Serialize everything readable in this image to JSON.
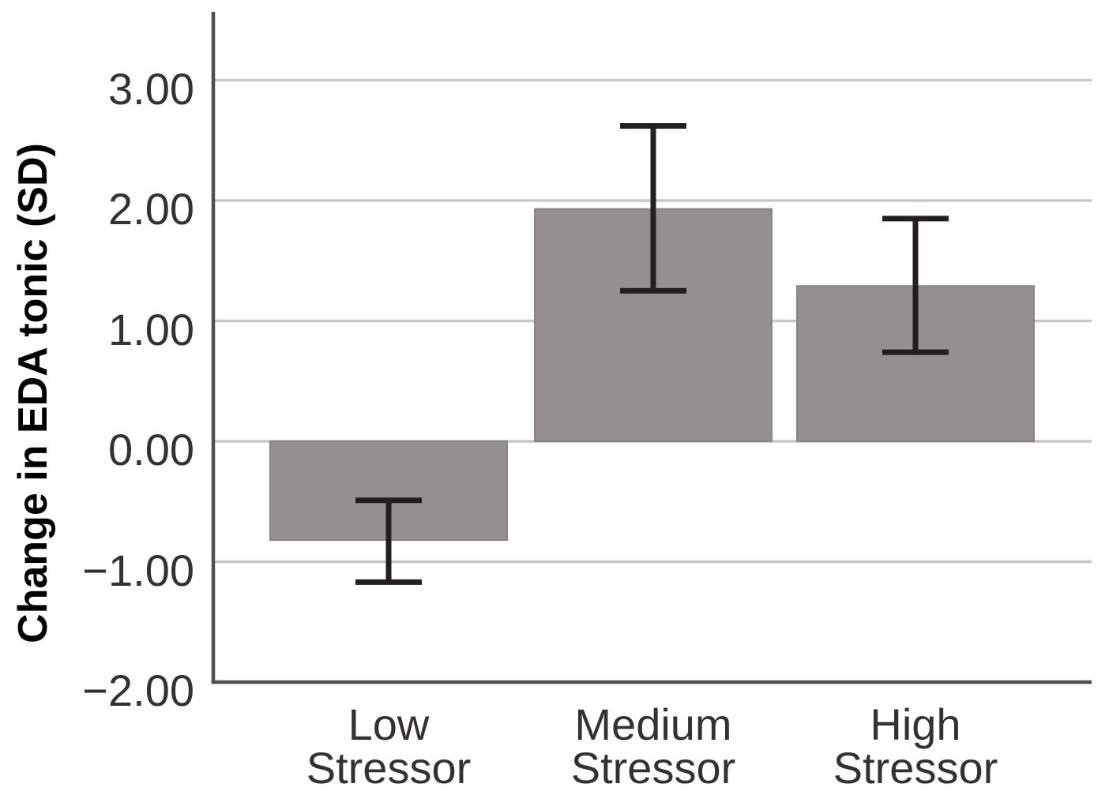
{
  "chart_data": {
    "type": "bar",
    "title": "",
    "xlabel": "",
    "ylabel": "Change in EDA tonic (SD)",
    "categories": [
      "Low\nStressor",
      "Medium\nStressor",
      "High\nStressor"
    ],
    "values": [
      -0.82,
      1.93,
      1.29
    ],
    "error_bars": [
      {
        "upper": -0.49,
        "lower": -1.17
      },
      {
        "upper": 2.62,
        "lower": 1.25
      },
      {
        "upper": 1.85,
        "lower": 0.74
      }
    ],
    "yticks": [
      3,
      2,
      1,
      0,
      -1,
      -2
    ],
    "ytick_labels": [
      "3.00",
      "2.00",
      "1.00",
      "0.00",
      "−1.00",
      "−2.00"
    ],
    "ylim": [
      -2.0,
      3.57
    ],
    "grid": true,
    "legend": "none",
    "colors": {
      "bar_fill": "#949090",
      "bar_border": "#8a8583",
      "error_bar": "#221f1e",
      "gridline": "#c7c7c7",
      "axis_line": "#4f4f4f",
      "tick_text": "#343230",
      "axis_title_text": "#000000"
    }
  }
}
